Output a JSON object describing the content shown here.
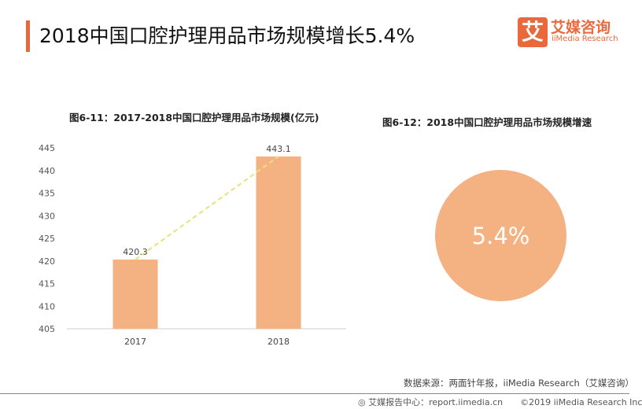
{
  "header": {
    "title": "2018中国口腔护理用品市场规模增长5.4%",
    "logo_mark": "艾",
    "logo_cn": "艾媒咨询",
    "logo_en": "iiMedia Research"
  },
  "chart_data": [
    {
      "type": "bar",
      "title": "图6-11：2017-2018中国口腔护理用品市场规模(亿元)",
      "categories": [
        "2017",
        "2018"
      ],
      "values": [
        420.3,
        443.1
      ],
      "value_labels": [
        "420.3",
        "443.1"
      ],
      "ylim": [
        405,
        445
      ],
      "yticks": [
        "405",
        "410",
        "415",
        "420",
        "425",
        "430",
        "435",
        "440",
        "445"
      ],
      "trend_line": true,
      "colors": {
        "bar": "#f4b181",
        "trend": "#e8e27a"
      }
    },
    {
      "type": "pie",
      "title": "图6-12：2018中国口腔护理用品市场规模增速",
      "values": [
        5.4
      ],
      "label": "5.4%",
      "colors": {
        "circle": "#f4b181"
      }
    }
  ],
  "footer": {
    "source": "数据来源：两面针年报，iiMedia Research（艾媒咨询）",
    "site": "艾媒报告中心：report.iimedia.cn",
    "copyright": "©2019  iiMedia Research  Inc"
  }
}
